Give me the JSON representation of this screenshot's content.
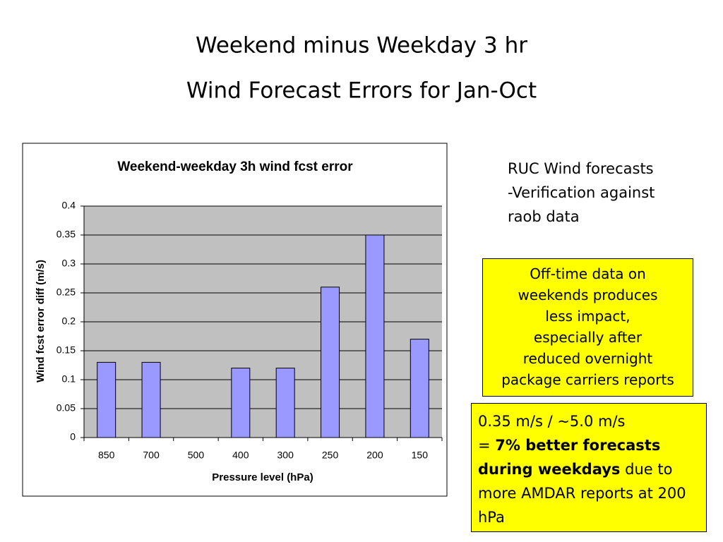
{
  "slide_title": [
    "Weekend minus Weekday 3 hr",
    "Wind Forecast Errors for Jan-Oct"
  ],
  "chart_data": {
    "type": "bar",
    "title": "Weekend-weekday 3h wind fcst error",
    "x_label": "Pressure level (hPa)",
    "y_label": "Wind fcst error diff (m/s)",
    "categories": [
      "850",
      "700",
      "500",
      "400",
      "300",
      "250",
      "200",
      "150"
    ],
    "values": [
      0.13,
      0.13,
      null,
      0.12,
      0.12,
      0.26,
      0.35,
      0.17
    ],
    "color": "#9999ff",
    "ylim": [
      0,
      0.4
    ],
    "yticks": [
      0,
      0.05,
      0.1,
      0.15,
      0.2,
      0.25,
      0.3,
      0.35,
      0.4
    ],
    "grid": true
  },
  "side_note": [
    "RUC Wind forecasts",
    "-Verification against",
    "raob data"
  ],
  "box1": [
    "Off-time data on",
    "weekends produces",
    "less impact,",
    "especially after",
    "reduced overnight",
    "package carriers reports"
  ],
  "box2": {
    "line1": "0.35 m/s / ~5.0 m/s",
    "prefix": "=",
    "bold": "7% better forecasts during weekdays",
    "rest": "due to more AMDAR reports at 200 hPa"
  }
}
